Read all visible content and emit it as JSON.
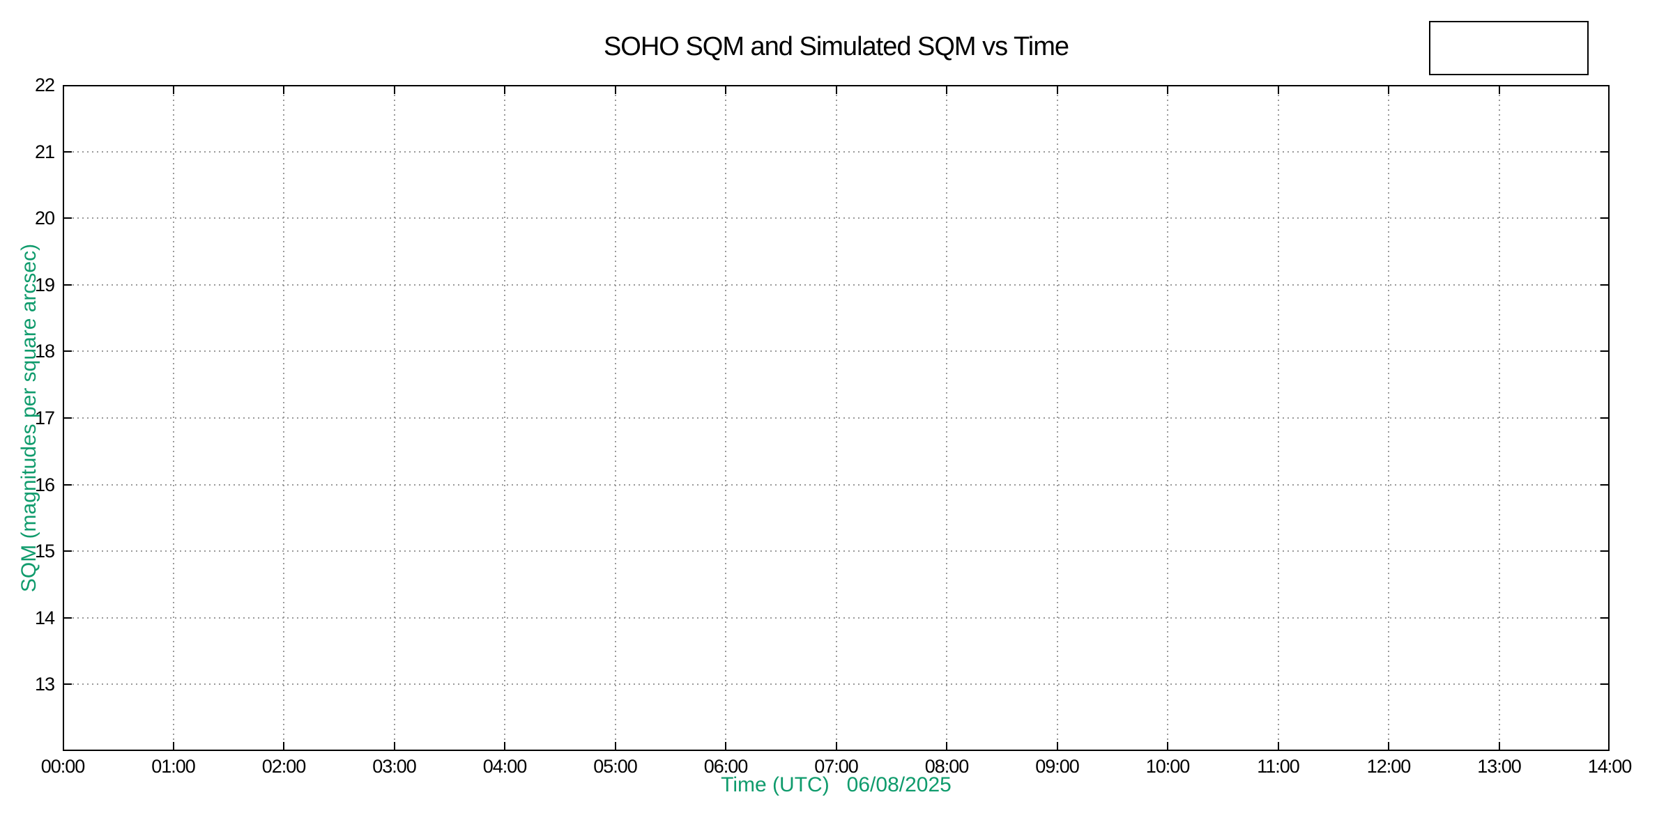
{
  "title": "SOHO SQM and Simulated SQM vs Time",
  "legend": {
    "entries": [],
    "border_color": "#000000"
  },
  "axes": {
    "x": {
      "label": "Time (UTC)   06/08/2025",
      "tick_labels": [
        "00:00",
        "01:00",
        "02:00",
        "03:00",
        "04:00",
        "05:00",
        "06:00",
        "07:00",
        "08:00",
        "09:00",
        "10:00",
        "11:00",
        "12:00",
        "13:00",
        "14:00"
      ]
    },
    "y": {
      "label": "SQM (magnitudes per square arcsec)",
      "tick_labels": [
        "22",
        "21",
        "20",
        "19",
        "18",
        "17",
        "16",
        "15",
        "14",
        "13"
      ]
    }
  },
  "colors": {
    "axis_label_green": "#0f9b6c",
    "text": "#000000",
    "grid": "#999999",
    "plot_border": "#000000",
    "background": "#ffffff"
  },
  "chart_data": {
    "type": "scatter",
    "title": "SOHO SQM and Simulated SQM vs Time",
    "xlabel": "Time (UTC)   06/08/2025",
    "ylabel": "SQM (magnitudes per square arcsec)",
    "x_tick_labels": [
      "00:00",
      "01:00",
      "02:00",
      "03:00",
      "04:00",
      "05:00",
      "06:00",
      "07:00",
      "08:00",
      "09:00",
      "10:00",
      "11:00",
      "12:00",
      "13:00",
      "14:00"
    ],
    "x_tick_hours": [
      0,
      1,
      2,
      3,
      4,
      5,
      6,
      7,
      8,
      9,
      10,
      11,
      12,
      13,
      14
    ],
    "xlim_hours": [
      0,
      14
    ],
    "y_tick_values": [
      22,
      21,
      20,
      19,
      18,
      17,
      16,
      15,
      14,
      13
    ],
    "ylim": [
      12,
      22
    ],
    "grid": true,
    "legend_position": "outside-top-right",
    "series": []
  }
}
